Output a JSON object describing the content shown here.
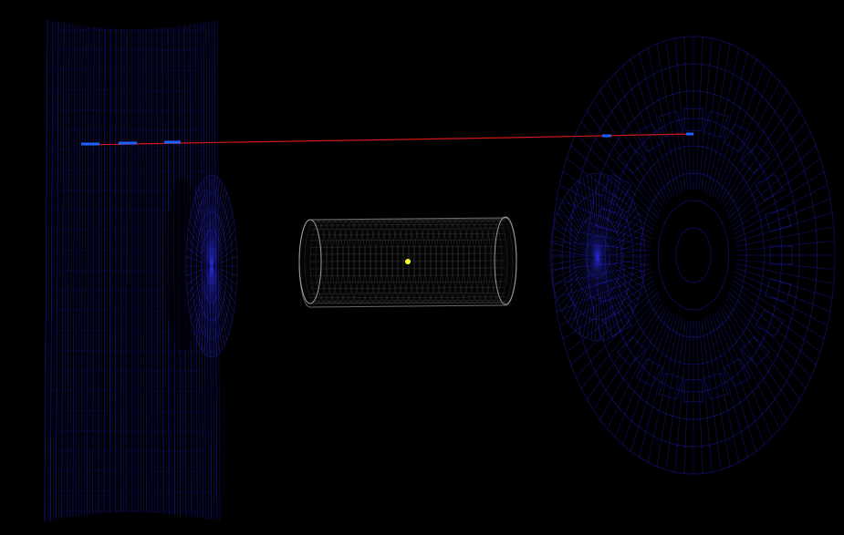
{
  "scene": {
    "background": "#000000",
    "wireframe_color": "#1a1aa8",
    "wireframe_bright": "#2a2ad8",
    "cylinder_color": "#6a6a6a",
    "track_color": "#d01818",
    "hit_color": "#2060ff",
    "vertex_color": "#ffff30"
  }
}
